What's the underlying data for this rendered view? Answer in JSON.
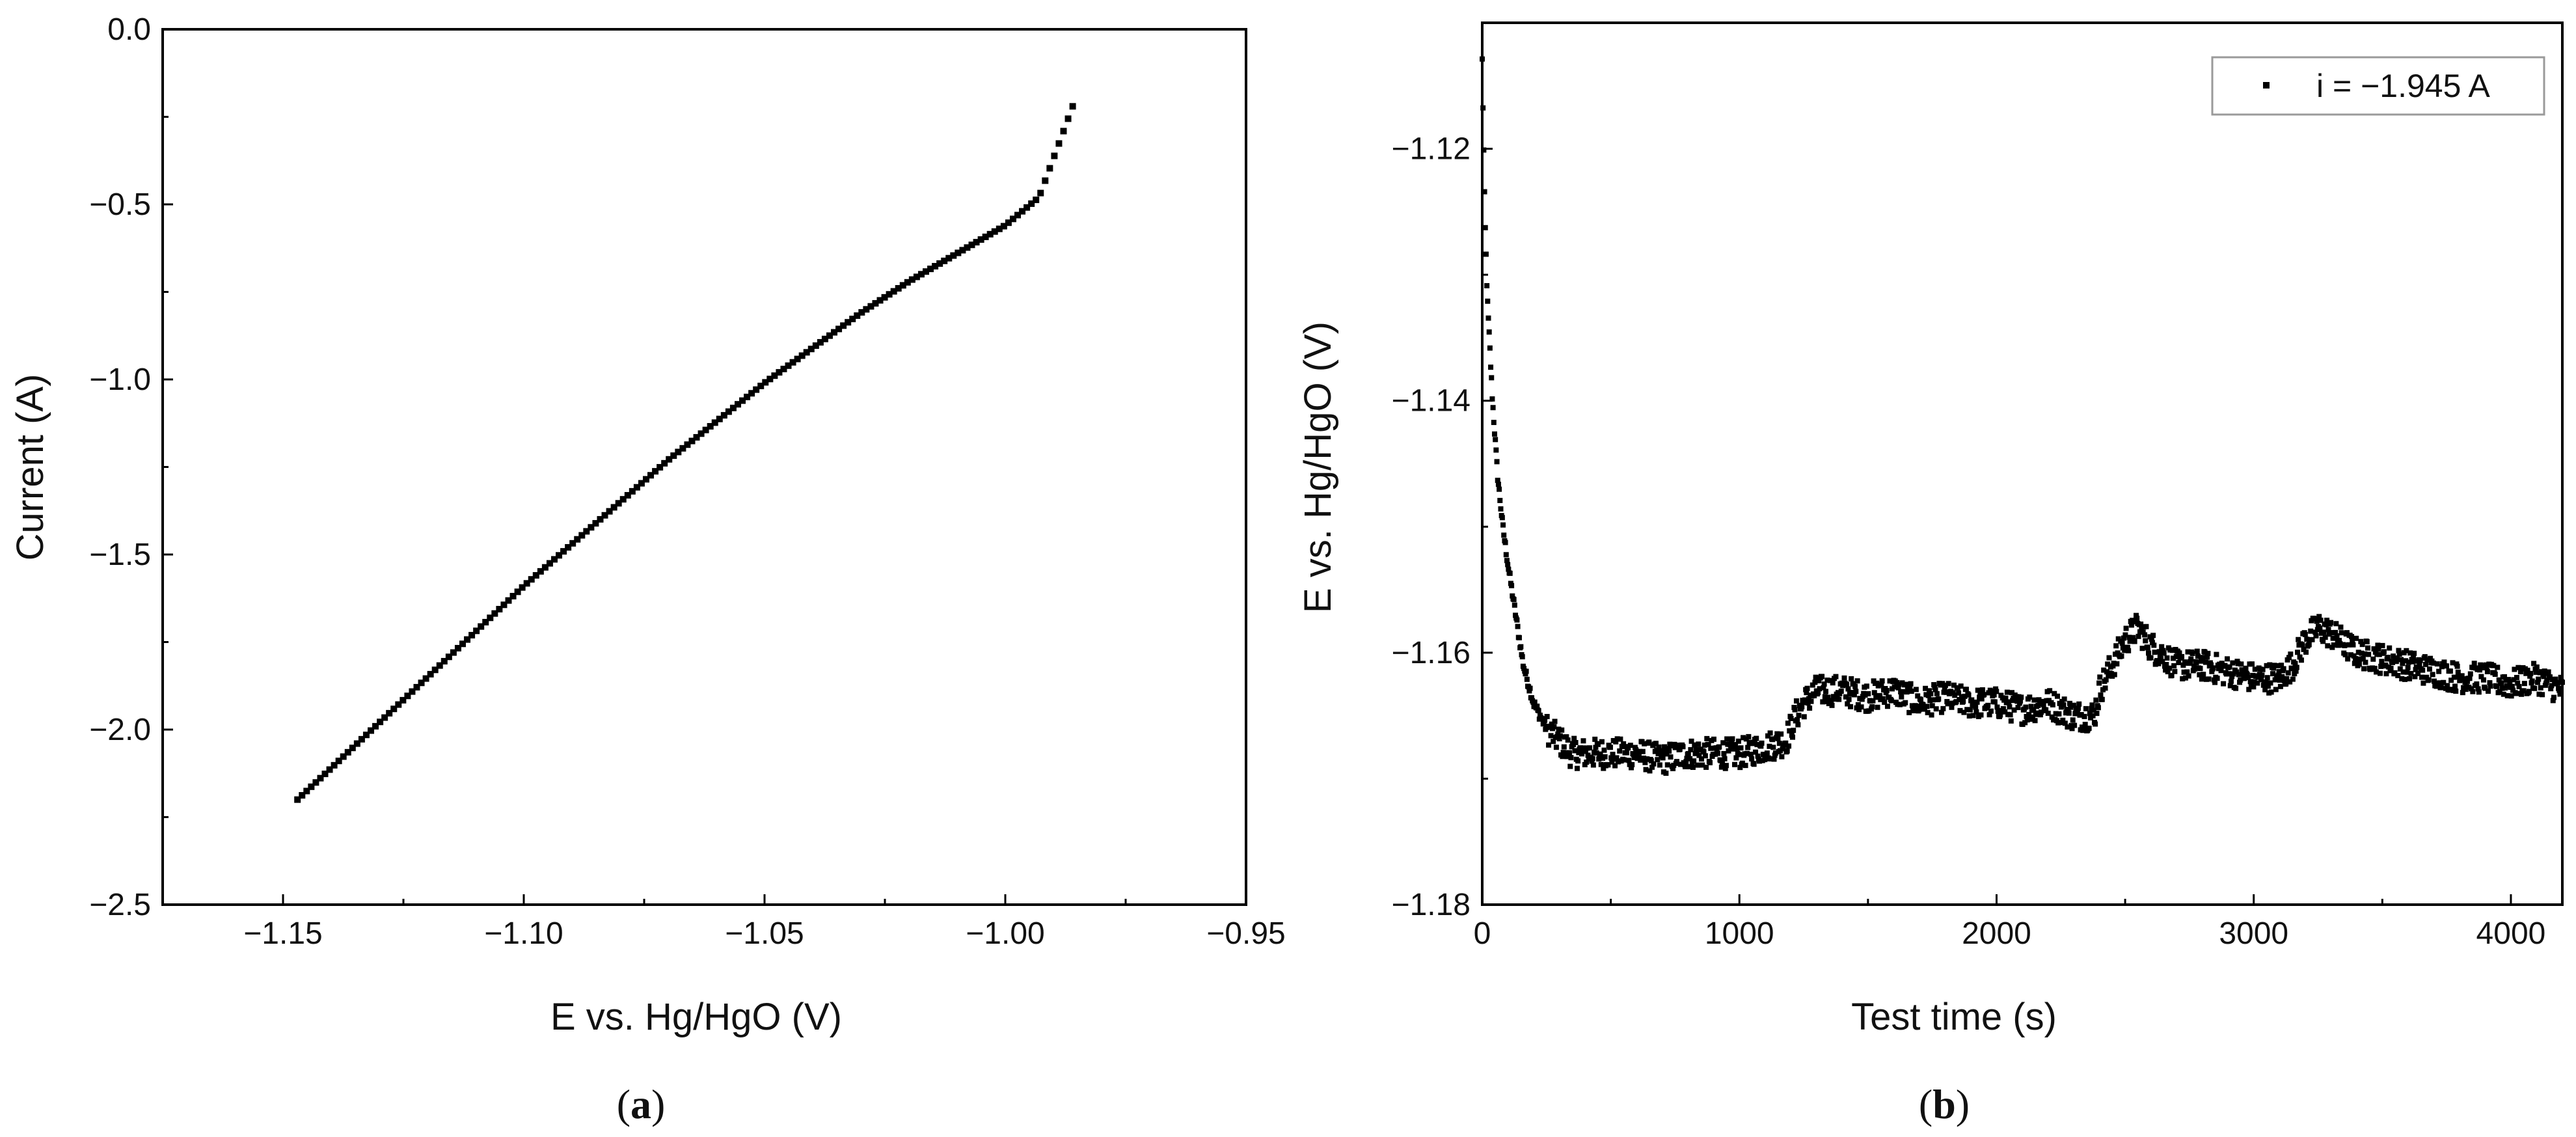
{
  "chart_data": [
    {
      "type": "scatter",
      "panel_label": "(a)",
      "panel_label_parts": {
        "open": "(",
        "letter": "a",
        "close": ")"
      },
      "title": "",
      "xlabel": "E vs. Hg/HgO (V)",
      "ylabel": "Current (A)",
      "xlim": [
        -1.175,
        -0.95
      ],
      "ylim": [
        -2.5,
        0.0
      ],
      "xticks": [
        -1.15,
        -1.1,
        -1.05,
        -1.0,
        -0.95
      ],
      "xtick_labels": [
        "−1.15",
        "−1.10",
        "−1.05",
        "−1.00",
        "−0.95"
      ],
      "yticks": [
        -2.5,
        -2.0,
        -1.5,
        -1.0,
        -0.5,
        0.0
      ],
      "ytick_labels": [
        "−2.5",
        "−2.0",
        "−1.5",
        "−1.0",
        "−0.5",
        "0.0"
      ],
      "grid": false,
      "legend": null,
      "marker_color": "#000000",
      "series": [
        {
          "x": [
            -1.147,
            -1.14,
            -1.13,
            -1.12,
            -1.11,
            -1.1,
            -1.09,
            -1.08,
            -1.07,
            -1.06,
            -1.05,
            -1.04,
            -1.03,
            -1.02,
            -1.01,
            -1.0,
            -0.993,
            -0.986
          ],
          "y": [
            -2.2,
            -2.11,
            -1.98,
            -1.85,
            -1.72,
            -1.59,
            -1.47,
            -1.35,
            -1.23,
            -1.12,
            -1.01,
            -0.91,
            -0.81,
            -0.72,
            -0.64,
            -0.56,
            -0.48,
            -0.22
          ]
        }
      ]
    },
    {
      "type": "scatter",
      "panel_label": "(b)",
      "panel_label_parts": {
        "open": "(",
        "letter": "b",
        "close": ")"
      },
      "title": "",
      "xlabel": "Test time (s)",
      "ylabel": "E vs. Hg/HgO (V)",
      "xlim": [
        0,
        4200
      ],
      "ylim": [
        -1.18,
        -1.11
      ],
      "xticks": [
        0,
        1000,
        2000,
        3000,
        4000
      ],
      "xtick_labels": [
        "0",
        "1000",
        "2000",
        "3000",
        "4000"
      ],
      "yticks": [
        -1.18,
        -1.16,
        -1.14,
        -1.12
      ],
      "ytick_labels": [
        "−1.18",
        "−1.16",
        "−1.14",
        "−1.12"
      ],
      "grid": false,
      "legend": "top-right",
      "marker_color": "#000000",
      "series": [
        {
          "name": "i = −1.945 A",
          "x": [
            0,
            10,
            20,
            40,
            60,
            80,
            100,
            130,
            160,
            200,
            250,
            300,
            350,
            400,
            500,
            600,
            700,
            800,
            900,
            1000,
            1100,
            1180,
            1220,
            1250,
            1300,
            1400,
            1500,
            1600,
            1700,
            1800,
            1900,
            2000,
            2100,
            2200,
            2300,
            2350,
            2380,
            2400,
            2450,
            2500,
            2550,
            2600,
            2700,
            2800,
            2900,
            3000,
            3100,
            3150,
            3200,
            3250,
            3300,
            3400,
            3500,
            3600,
            3700,
            3800,
            3900,
            4000,
            4100,
            4200
          ],
          "y": [
            -1.113,
            -1.125,
            -1.132,
            -1.14,
            -1.146,
            -1.15,
            -1.153,
            -1.157,
            -1.161,
            -1.164,
            -1.166,
            -1.167,
            -1.168,
            -1.168,
            -1.168,
            -1.168,
            -1.1685,
            -1.168,
            -1.168,
            -1.168,
            -1.1675,
            -1.167,
            -1.165,
            -1.164,
            -1.163,
            -1.163,
            -1.1635,
            -1.163,
            -1.164,
            -1.1635,
            -1.164,
            -1.164,
            -1.1645,
            -1.164,
            -1.165,
            -1.165,
            -1.165,
            -1.163,
            -1.161,
            -1.159,
            -1.158,
            -1.1595,
            -1.161,
            -1.161,
            -1.1615,
            -1.162,
            -1.162,
            -1.161,
            -1.159,
            -1.158,
            -1.1585,
            -1.16,
            -1.1605,
            -1.161,
            -1.1615,
            -1.162,
            -1.162,
            -1.1625,
            -1.162,
            -1.163
          ]
        }
      ]
    }
  ]
}
